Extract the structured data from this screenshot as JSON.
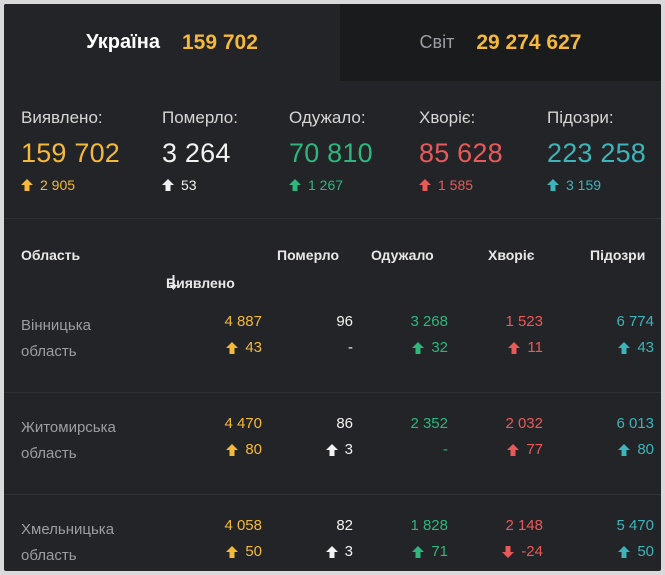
{
  "tabs": [
    {
      "name": "Україна",
      "value": "159 702"
    },
    {
      "name": "Світ",
      "value": "29 274 627"
    }
  ],
  "summary": [
    {
      "label": "Виявлено:",
      "value": "159 702",
      "delta": "2 905",
      "color": "#f5b93a"
    },
    {
      "label": "Померло:",
      "value": "3 264",
      "delta": "53",
      "color": "#f2f2f2"
    },
    {
      "label": "Одужало:",
      "value": "70 810",
      "delta": "1 267",
      "color": "#2eb67d"
    },
    {
      "label": "Хворіє:",
      "value": "85 628",
      "delta": "1 585",
      "color": "#e85a5a"
    },
    {
      "label": "Підозри:",
      "value": "223 258",
      "delta": "3 159",
      "color": "#3bb4ba"
    }
  ],
  "table": {
    "headers": [
      "Область",
      "Виявлено",
      "Померло",
      "Одужало",
      "Хворіє",
      "Підозри"
    ],
    "rows": [
      {
        "region": [
          "Вінницька",
          "область"
        ],
        "detected": "4 887",
        "detected_delta": "43",
        "died": "96",
        "died_delta": "-",
        "recovered": "3 268",
        "recovered_delta": "32",
        "sick": "1 523",
        "sick_delta": "11",
        "suspected": "6 774",
        "suspected_delta": "43"
      },
      {
        "region": [
          "Житомирська",
          "область"
        ],
        "detected": "4 470",
        "detected_delta": "80",
        "died": "86",
        "died_delta": "3",
        "recovered": "2 352",
        "recovered_delta": "-",
        "sick": "2 032",
        "sick_delta": "77",
        "suspected": "6 013",
        "suspected_delta": "80"
      },
      {
        "region": [
          "Хмельницька",
          "область"
        ],
        "detected": "4 058",
        "detected_delta": "50",
        "died": "82",
        "died_delta": "3",
        "recovered": "1 828",
        "recovered_delta": "71",
        "sick": "2 148",
        "sick_delta": "-24",
        "suspected": "5 470",
        "suspected_delta": "50"
      }
    ]
  },
  "icons": {
    "up": "arrow-up-icon",
    "down": "arrow-down-icon",
    "sort": "sort-down-icon"
  }
}
